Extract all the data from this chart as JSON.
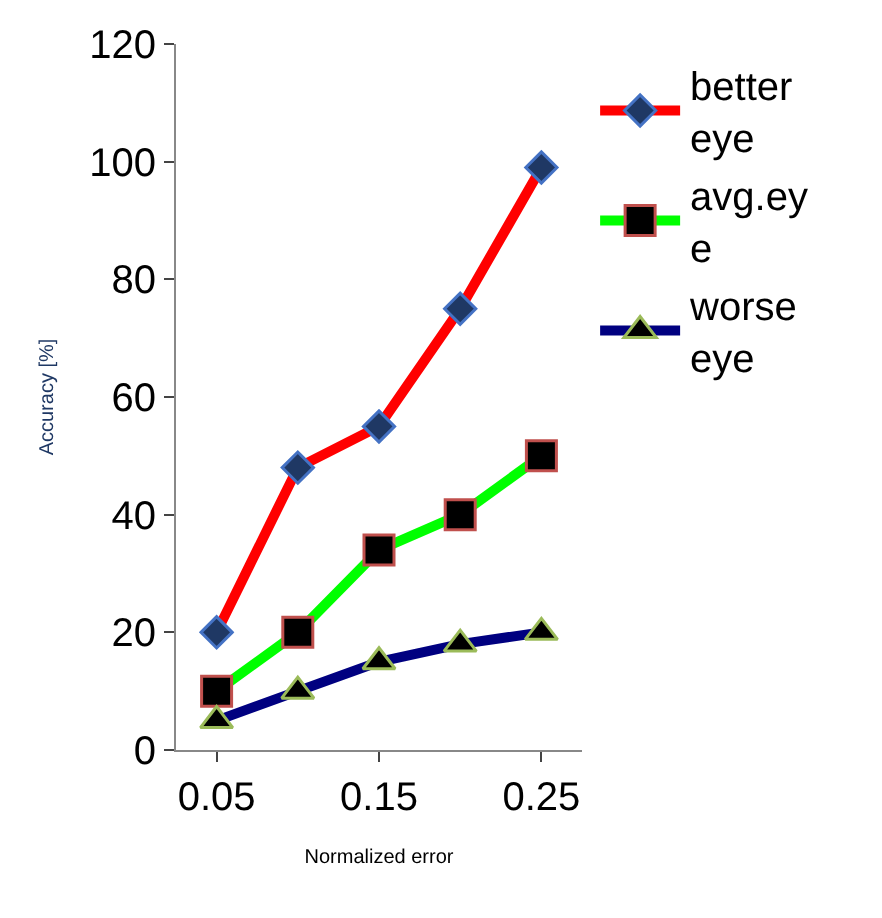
{
  "chart_data": {
    "type": "line",
    "xlabel": "Normalized error",
    "ylabel": "Accuracy [%]",
    "x": [
      0.05,
      0.1,
      0.15,
      0.2,
      0.25
    ],
    "series": [
      {
        "name": "better eye",
        "color": "#ff0000",
        "marker": "diamond",
        "values": [
          20,
          48,
          55,
          75,
          99
        ]
      },
      {
        "name": "avg.eye",
        "color": "#00ff00",
        "marker": "square",
        "values": [
          10,
          20,
          34,
          40,
          50
        ]
      },
      {
        "name": "worse eye",
        "color": "#000080",
        "marker": "triangle",
        "values": [
          5,
          10,
          15,
          18,
          20
        ]
      }
    ],
    "xlim": [
      0.025,
      0.275
    ],
    "xticks": [
      0.05,
      0.15,
      0.25
    ],
    "ylim": [
      0,
      120
    ],
    "yticks": [
      0,
      20,
      40,
      60,
      80,
      100,
      120
    ],
    "legend": "right"
  }
}
